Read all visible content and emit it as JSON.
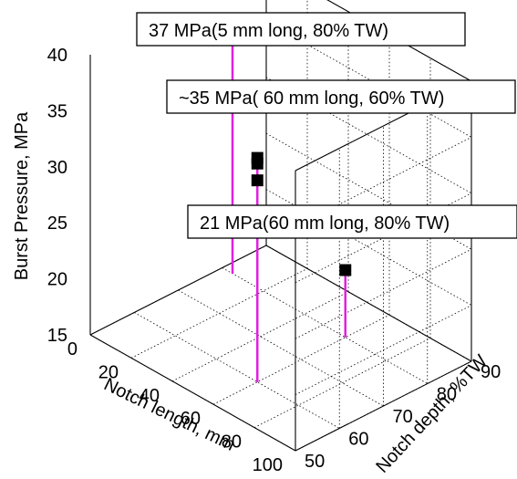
{
  "chart_data": {
    "type": "scatter3d",
    "title": "",
    "xlabel": "Notch length, mm",
    "ylabel": "Notch depth, %TW",
    "zlabel": "Burst Pressure, MPa",
    "x_ticks": [
      0,
      20,
      40,
      60,
      80,
      100
    ],
    "y_ticks": [
      50,
      60,
      70,
      80,
      90
    ],
    "z_ticks": [
      15,
      20,
      25,
      30,
      35,
      40
    ],
    "xlim": [
      0,
      100
    ],
    "ylim": [
      50,
      90
    ],
    "zlim": [
      15,
      40
    ],
    "grid": true,
    "marker_color": "#000000",
    "stem_color": "#e020e0",
    "points": [
      {
        "x": 5,
        "y": 80,
        "z": 37
      },
      {
        "x": 60,
        "y": 60,
        "z": 35
      },
      {
        "x": 60,
        "y": 60,
        "z": 34.5
      },
      {
        "x": 60,
        "y": 60,
        "z": 33
      },
      {
        "x": 60,
        "y": 80,
        "z": 21
      }
    ],
    "annotations": [
      {
        "text": "37 MPa(5 mm long, 80% TW)"
      },
      {
        "text": "~35 MPa( 60 mm long, 60% TW)"
      },
      {
        "text": "21 MPa(60 mm long, 80% TW)"
      }
    ]
  }
}
